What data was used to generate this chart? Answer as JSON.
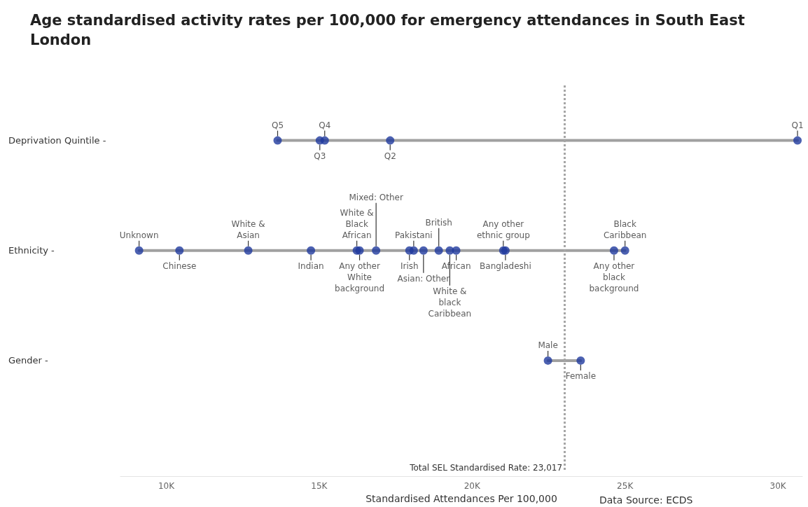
{
  "chart_data": {
    "type": "scatter",
    "orientation": "horizontal",
    "title": "Age standardised activity rates per 100,000 for emergency attendances in South East London",
    "xlabel": "Standardised Attendances Per 100,000",
    "annotations": [
      "Data Source: ECDS"
    ],
    "categories": [
      "Deprivation Quintile -",
      "Ethnicity -",
      "Gender -"
    ],
    "series": [
      {
        "color": "#1f3a9e",
        "values": [
          13640,
          null,
          null
        ],
        "value_labels": [
          "Q5",
          null,
          null
        ]
      },
      {
        "color": "#1f3a9e",
        "values": [
          15020,
          null,
          null
        ],
        "value_labels": [
          "Q3",
          null,
          null
        ]
      },
      {
        "color": "#1f3a9e",
        "values": [
          15180,
          null,
          null
        ],
        "value_labels": [
          "Q4",
          null,
          null
        ]
      },
      {
        "color": "#1f3a9e",
        "values": [
          17320,
          null,
          null
        ],
        "value_labels": [
          "Q2",
          null,
          null
        ]
      },
      {
        "color": "#1f3a9e",
        "values": [
          30640,
          null,
          null
        ],
        "value_labels": [
          "Q1",
          null,
          null
        ]
      },
      {
        "color": "#1f3a9e",
        "values": [
          null,
          9110,
          null
        ],
        "value_labels": [
          null,
          "Unknown",
          null
        ]
      },
      {
        "color": "#1f3a9e",
        "values": [
          null,
          10430,
          null
        ],
        "value_labels": [
          null,
          "Chinese",
          null
        ]
      },
      {
        "color": "#1f3a9e",
        "values": [
          null,
          12680,
          null
        ],
        "value_labels": [
          null,
          "White & Asian",
          null
        ]
      },
      {
        "color": "#1f3a9e",
        "values": [
          null,
          14730,
          null
        ],
        "value_labels": [
          null,
          "Indian",
          null
        ]
      },
      {
        "color": "#1f3a9e",
        "values": [
          null,
          16230,
          null
        ],
        "value_labels": [
          null,
          "White & Black African",
          null
        ]
      },
      {
        "color": "#1f3a9e",
        "values": [
          null,
          16320,
          null
        ],
        "value_labels": [
          null,
          "Any other White background",
          null
        ]
      },
      {
        "color": "#1f3a9e",
        "values": [
          null,
          16860,
          null
        ],
        "value_labels": [
          null,
          "Mixed: Other",
          null
        ]
      },
      {
        "color": "#1f3a9e",
        "values": [
          null,
          17950,
          null
        ],
        "value_labels": [
          null,
          "Irish",
          null
        ]
      },
      {
        "color": "#1f3a9e",
        "values": [
          null,
          18090,
          null
        ],
        "value_labels": [
          null,
          "Pakistani",
          null
        ]
      },
      {
        "color": "#1f3a9e",
        "values": [
          null,
          18410,
          null
        ],
        "value_labels": [
          null,
          "Asian: Other",
          null
        ]
      },
      {
        "color": "#1f3a9e",
        "values": [
          null,
          18910,
          null
        ],
        "value_labels": [
          null,
          "British",
          null
        ]
      },
      {
        "color": "#1f3a9e",
        "values": [
          null,
          19270,
          null
        ],
        "value_labels": [
          null,
          "White & black Caribbean",
          null
        ]
      },
      {
        "color": "#1f3a9e",
        "values": [
          null,
          19480,
          null
        ],
        "value_labels": [
          null,
          "African",
          null
        ]
      },
      {
        "color": "#1f3a9e",
        "values": [
          null,
          21020,
          null
        ],
        "value_labels": [
          null,
          "Any other ethnic group",
          null
        ]
      },
      {
        "color": "#1f3a9e",
        "values": [
          null,
          21090,
          null
        ],
        "value_labels": [
          null,
          "Bangladeshi",
          null
        ]
      },
      {
        "color": "#1f3a9e",
        "values": [
          null,
          24640,
          null
        ],
        "value_labels": [
          null,
          "Any other black background",
          null
        ]
      },
      {
        "color": "#1f3a9e",
        "values": [
          null,
          25000,
          null
        ],
        "value_labels": [
          null,
          "Black Caribbean",
          null
        ]
      },
      {
        "color": "#1f3a9e",
        "values": [
          null,
          null,
          22480
        ],
        "value_labels": [
          null,
          null,
          "Male"
        ]
      },
      {
        "color": "#1f3a9e",
        "values": [
          null,
          null,
          23550
        ],
        "value_labels": [
          null,
          null,
          "Female"
        ]
      }
    ],
    "xlim": [
      8500,
      30800
    ],
    "xticks": [
      {
        "value": 10000,
        "label": "10K"
      },
      {
        "value": 15000,
        "label": "15K"
      },
      {
        "value": 20000,
        "label": "20K"
      },
      {
        "value": 25000,
        "label": "25K"
      },
      {
        "value": 30000,
        "label": "30K"
      }
    ],
    "ref_lines": [
      {
        "axis": "x",
        "value": 23017,
        "label": "Total SEL Standardised Rate: 23,017",
        "color": "#a6a6a6",
        "line_style": "dotted"
      }
    ],
    "grid": false,
    "marker": "circle"
  }
}
